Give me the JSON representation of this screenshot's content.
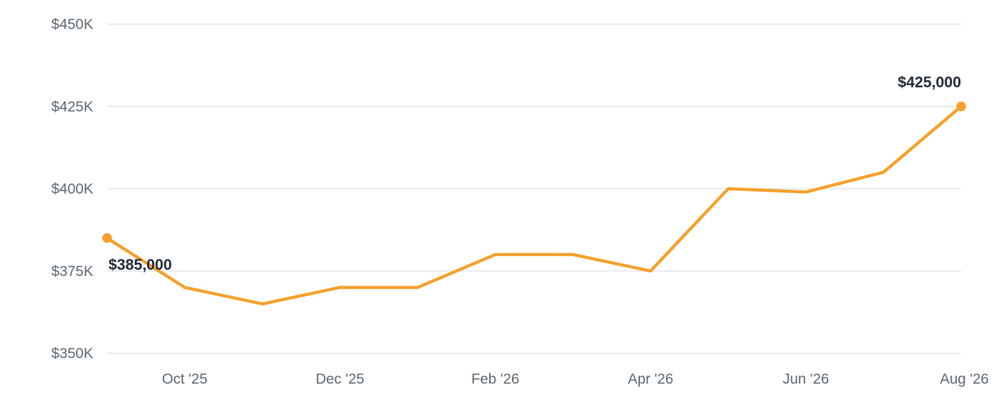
{
  "chart_data": {
    "type": "line",
    "title": "",
    "xlabel": "",
    "ylabel": "",
    "x": [
      "Sep '25",
      "Oct '25",
      "Nov '25",
      "Dec '25",
      "Jan '26",
      "Feb '26",
      "Mar '26",
      "Apr '26",
      "May '26",
      "Jun '26",
      "Jul '26",
      "Aug '26"
    ],
    "x_tick_labels": [
      "Oct '25",
      "Dec '25",
      "Feb '26",
      "Apr '26",
      "Jun '26",
      "Aug '26"
    ],
    "series": [
      {
        "values": [
          385000,
          370000,
          365000,
          370000,
          370000,
          380000,
          380000,
          375000,
          400000,
          399000,
          405000,
          425000
        ],
        "color": "#f5a02a"
      }
    ],
    "ylim": [
      350000,
      450000
    ],
    "y_ticks": [
      {
        "value": 350000,
        "label": "$350K"
      },
      {
        "value": 375000,
        "label": "$375K"
      },
      {
        "value": 400000,
        "label": "$400K"
      },
      {
        "value": 425000,
        "label": "$425K"
      },
      {
        "value": 450000,
        "label": "$450K"
      }
    ],
    "annotations": [
      {
        "x": "Sep '25",
        "value": 385000,
        "label": "$385,000"
      },
      {
        "x": "Aug '26",
        "value": 425000,
        "label": "$425,000"
      }
    ],
    "grid": true,
    "legend": "none"
  }
}
